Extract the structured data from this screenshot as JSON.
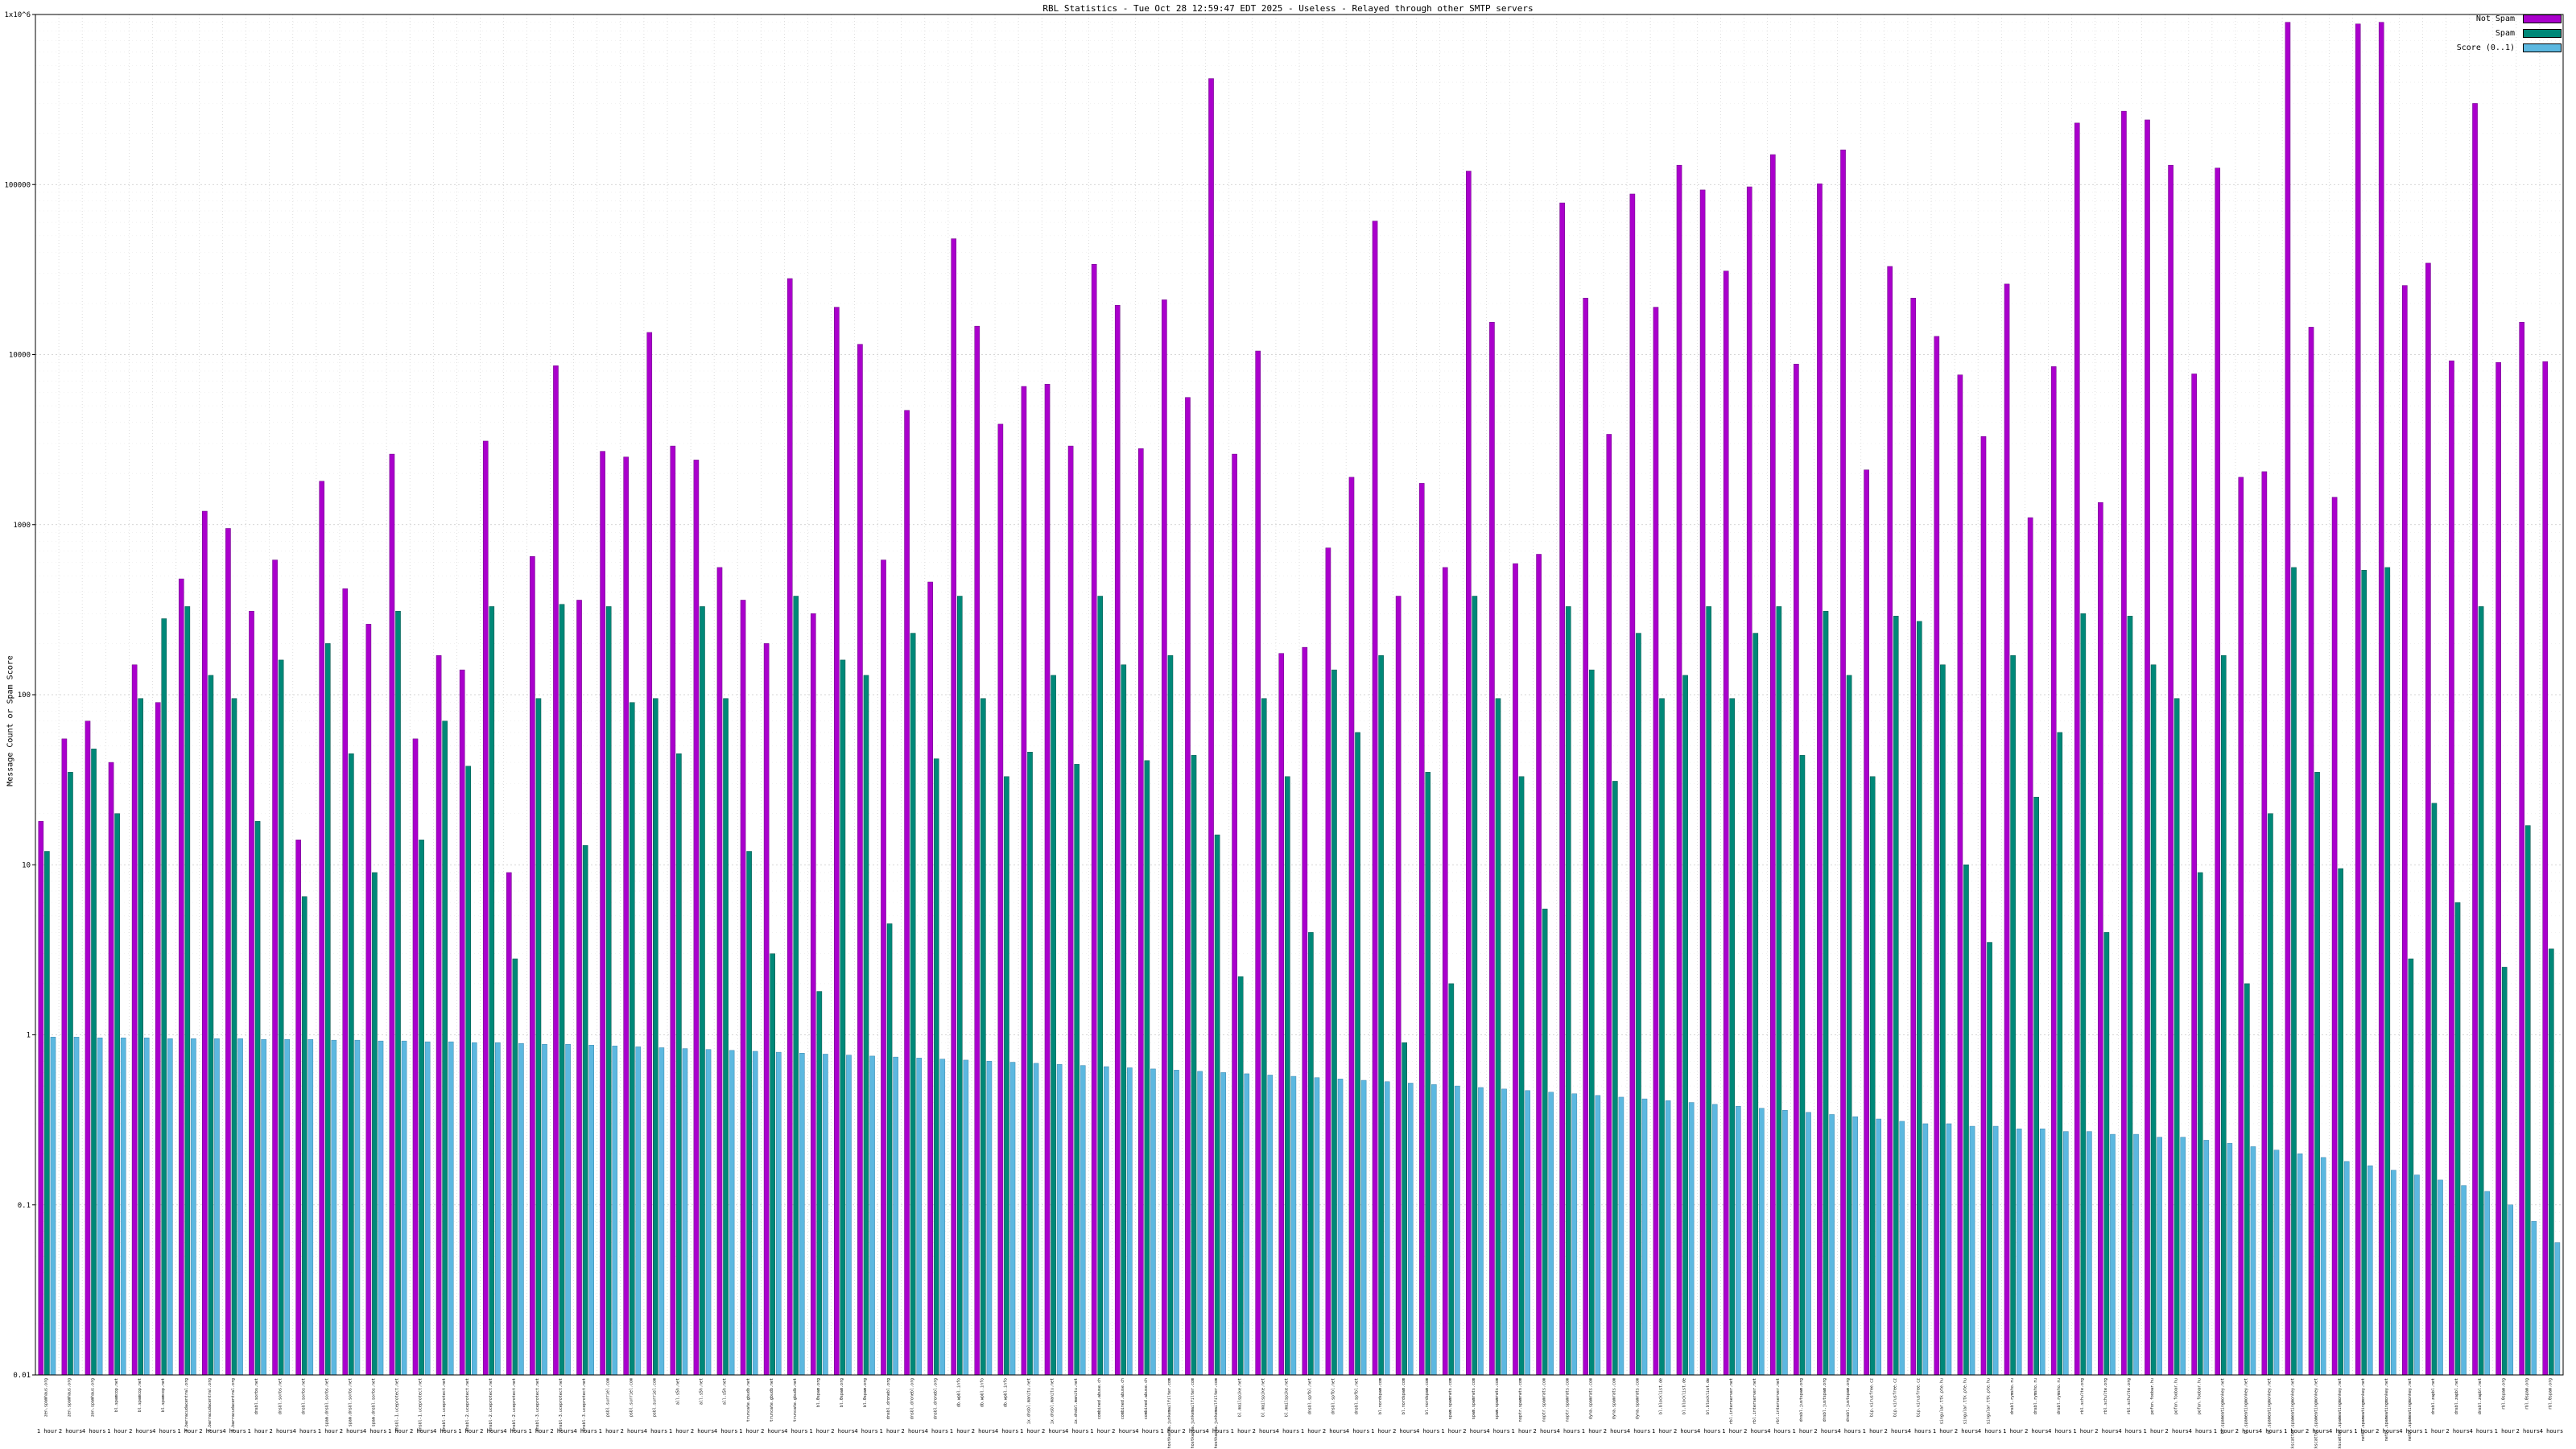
{
  "title": "RBL Statistics - Tue Oct 28 12:59:47 EDT 2025 - Useless - Relayed through other SMTP servers",
  "ylabel": "Message Count or Spam Score",
  "legend": {
    "not_spam_label": "Not Spam",
    "spam_label": "Spam",
    "score_label": "Score (0..1)"
  },
  "colors": {
    "not_spam": "#aa00cc",
    "not_spam_edge": "#660080",
    "spam": "#008878",
    "spam_edge": "#00524a",
    "score": "#5cb8e0",
    "score_edge": "#3a86ac",
    "grid": "#c8c8c8",
    "frame": "#000000"
  },
  "chart_data": {
    "type": "bar",
    "title": "RBL Statistics - Tue Oct 28 12:59:47 EDT 2025 - Useless - Relayed through other SMTP servers",
    "xlabel": "",
    "ylabel": "Message Count or Spam Score",
    "y_scale": "log",
    "ylim": [
      0.01,
      1000000
    ],
    "y_ticks": [
      {
        "v": 0.01,
        "label": "0.01"
      },
      {
        "v": 0.1,
        "label": "0.1"
      },
      {
        "v": 1,
        "label": "1"
      },
      {
        "v": 10,
        "label": "10"
      },
      {
        "v": 100,
        "label": "100"
      },
      {
        "v": 1000,
        "label": "1000"
      },
      {
        "v": 10000,
        "label": "10000"
      },
      {
        "v": 100000,
        "label": "100000"
      },
      {
        "v": 1000000,
        "label": "1x10^6"
      }
    ],
    "legend_position": "top-right",
    "grid": true,
    "hosts": [
      "zen.spamhaus.org",
      "bl.spamcop.net",
      "b.barracudacentral.org",
      "dnsbl.sorbs.net",
      "spam.dnsbl.sorbs.net",
      "dnsbl-1.uceprotect.net",
      "dnsbl-2.uceprotect.net",
      "dnsbl-3.uceprotect.net",
      "psbl.surriel.com",
      "all.s5h.net",
      "truncate.gbudb.net",
      "bl.0spam.org",
      "dnsbl.dronebl.org",
      "db.wpbl.info",
      "ix.dnsbl.manitu.net",
      "combined.abuse.ch",
      "hostkarma.junkemailfilter.com",
      "bl.mailspike.net",
      "dnsbl.spfbl.net",
      "bl.nordspam.com",
      "spam.spamrats.com",
      "noptr.spamrats.com",
      "dyna.spamrats.com",
      "bl.blocklist.de",
      "rbl.interserver.net",
      "dnsbl.justspam.org",
      "bip.virusfree.cz",
      "singular.ttk.pte.hu",
      "dnsbl.rymsho.ru",
      "rbl.schulte.org",
      "pofon.foobar.hu",
      "bl.spameatingmonkey.net",
      "backscatter.spameatingmonkey.net",
      "netbl.spameatingmonkey.net",
      "dnsbl.zapbl.net",
      "rbl.0spam.org"
    ],
    "periods": [
      "1 hour",
      "2 hours",
      "4 hours"
    ],
    "series": [
      {
        "name": "Not Spam",
        "values": [
          18,
          55,
          70,
          40,
          150,
          90,
          480,
          1200,
          950,
          310,
          620,
          14,
          1800,
          420,
          260,
          2600,
          55,
          170,
          140,
          3100,
          9,
          650,
          8600,
          360,
          2700,
          2500,
          13500,
          2900,
          2400,
          560,
          360,
          200,
          28000,
          300,
          19000,
          11500,
          620,
          4700,
          460,
          48000,
          14700,
          3900,
          6500,
          6700,
          2900,
          34000,
          19500,
          2800,
          21000,
          5600,
          420000,
          2600,
          10500,
          175,
          190,
          730,
          1900,
          61000,
          380,
          1750,
          560,
          120000,
          15500,
          590,
          670,
          78000,
          21500,
          3400,
          88000,
          19000,
          130000,
          93000,
          31000,
          97000,
          150000,
          8800,
          101000,
          160000,
          2100,
          33000,
          21500,
          12800,
          7600,
          3300,
          26000,
          1100,
          8500,
          230000,
          1350,
          270000,
          240000,
          130000,
          7700,
          125000,
          1900,
          2050,
          900000,
          14500,
          1450,
          880000,
          900000,
          25500,
          34500,
          9200,
          300000,
          9000,
          15500,
          9100
        ]
      },
      {
        "name": "Spam",
        "values": [
          12,
          35,
          48,
          20,
          95,
          280,
          330,
          130,
          95,
          18,
          160,
          6.5,
          200,
          45,
          9,
          310,
          14,
          70,
          38,
          330,
          2.8,
          95,
          340,
          13,
          330,
          90,
          95,
          45,
          330,
          95,
          12,
          3,
          380,
          1.8,
          160,
          130,
          4.5,
          230,
          42,
          380,
          95,
          33,
          46,
          130,
          39,
          380,
          150,
          41,
          170,
          44,
          15,
          2.2,
          95,
          33,
          4,
          140,
          60,
          170,
          0.9,
          35,
          2,
          380,
          95,
          33,
          5.5,
          330,
          140,
          31,
          230,
          95,
          130,
          330,
          95,
          230,
          330,
          44,
          310,
          130,
          33,
          290,
          270,
          150,
          10,
          3.5,
          170,
          25,
          60,
          300,
          4,
          290,
          150,
          95,
          9,
          170,
          2,
          20,
          560,
          35,
          9.5,
          540,
          560,
          2.8,
          23,
          6,
          330,
          2.5,
          17,
          3.2
        ]
      },
      {
        "name": "Score (0..1)",
        "values": [
          0.97,
          0.97,
          0.96,
          0.96,
          0.96,
          0.95,
          0.95,
          0.95,
          0.95,
          0.94,
          0.94,
          0.94,
          0.93,
          0.93,
          0.92,
          0.92,
          0.91,
          0.91,
          0.9,
          0.9,
          0.89,
          0.88,
          0.88,
          0.87,
          0.86,
          0.85,
          0.84,
          0.83,
          0.82,
          0.81,
          0.8,
          0.79,
          0.78,
          0.77,
          0.76,
          0.75,
          0.74,
          0.73,
          0.72,
          0.71,
          0.7,
          0.69,
          0.68,
          0.67,
          0.66,
          0.65,
          0.64,
          0.63,
          0.62,
          0.61,
          0.6,
          0.59,
          0.58,
          0.57,
          0.56,
          0.55,
          0.54,
          0.53,
          0.52,
          0.51,
          0.5,
          0.49,
          0.48,
          0.47,
          0.46,
          0.45,
          0.44,
          0.43,
          0.42,
          0.41,
          0.4,
          0.39,
          0.38,
          0.37,
          0.36,
          0.35,
          0.34,
          0.33,
          0.32,
          0.31,
          0.3,
          0.3,
          0.29,
          0.29,
          0.28,
          0.28,
          0.27,
          0.27,
          0.26,
          0.26,
          0.25,
          0.25,
          0.24,
          0.23,
          0.22,
          0.21,
          0.2,
          0.19,
          0.18,
          0.17,
          0.16,
          0.15,
          0.14,
          0.13,
          0.12,
          0.1,
          0.08,
          0.06
        ]
      }
    ]
  }
}
